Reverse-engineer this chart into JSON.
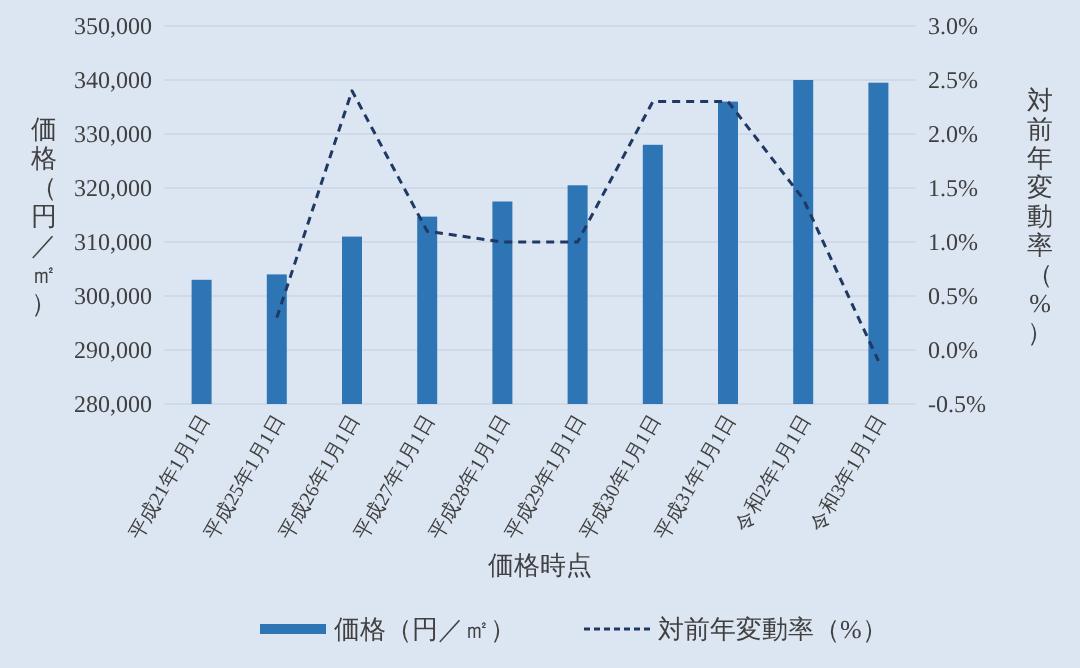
{
  "chart_data": {
    "type": "bar",
    "xlabel": "価格時点",
    "ylabel": "価格（円／㎡）",
    "y2label": "対前年変動率（%）",
    "categories": [
      "平成21年1月1日",
      "平成25年1月1日",
      "平成26年1月1日",
      "平成27年1月1日",
      "平成28年1月1日",
      "平成29年1月1日",
      "平成30年1月1日",
      "平成31年1月1日",
      "令和2年1月1日",
      "令和3年1月1日"
    ],
    "series": [
      {
        "name": "価格（円／㎡）",
        "color": "#2e75b6",
        "values": [
          303000,
          304000,
          311000,
          314700,
          317500,
          320500,
          328000,
          336000,
          340000,
          339500
        ]
      },
      {
        "name": "対前年変動率（%）",
        "type": "line",
        "axis": "y2",
        "color": "#1f3864",
        "line_style": "dashed",
        "marker": "none",
        "values": [
          null,
          0.3,
          2.4,
          1.1,
          1.0,
          1.0,
          2.3,
          2.3,
          1.4,
          -0.1
        ]
      }
    ],
    "ylim": [
      280000,
      350000
    ],
    "yticks": [
      {
        "value": 280000,
        "label": "280,000"
      },
      {
        "value": 290000,
        "label": "290,000"
      },
      {
        "value": 300000,
        "label": "300,000"
      },
      {
        "value": 310000,
        "label": "310,000"
      },
      {
        "value": 320000,
        "label": "320,000"
      },
      {
        "value": 330000,
        "label": "330,000"
      },
      {
        "value": 340000,
        "label": "340,000"
      },
      {
        "value": 350000,
        "label": "350,000"
      }
    ],
    "y2lim": [
      -0.5,
      3.0
    ],
    "y2ticks": [
      {
        "value": -0.5,
        "label": "-0.5%"
      },
      {
        "value": 0,
        "label": "0.0%"
      },
      {
        "value": 0.5,
        "label": "0.5%"
      },
      {
        "value": 1.0,
        "label": "1.0%"
      },
      {
        "value": 1.5,
        "label": "1.5%"
      },
      {
        "value": 2.0,
        "label": "2.0%"
      },
      {
        "value": 2.5,
        "label": "2.5%"
      },
      {
        "value": 3.0,
        "label": "3.0%"
      }
    ],
    "grid": "y",
    "legend": "bottom"
  }
}
